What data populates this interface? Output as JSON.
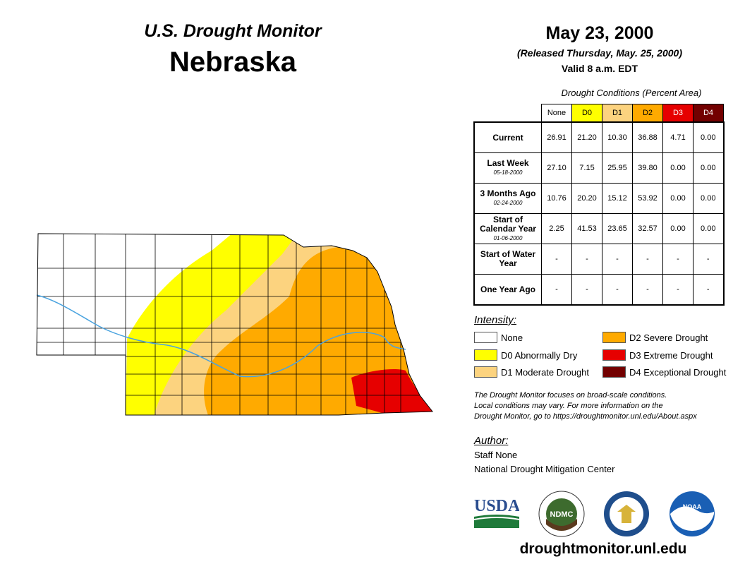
{
  "header": {
    "subtitle": "U.S. Drought Monitor",
    "state": "Nebraska",
    "date": "May 23, 2000",
    "released": "(Released Thursday, May. 25, 2000)",
    "valid": "Valid 8 a.m. EDT"
  },
  "conditions_table": {
    "title": "Drought Conditions (Percent Area)",
    "columns": [
      {
        "label": "None",
        "color": "#ffffff",
        "text_color": "#000000"
      },
      {
        "label": "D0",
        "color": "#ffff00",
        "text_color": "#000000"
      },
      {
        "label": "D1",
        "color": "#fcd37f",
        "text_color": "#000000"
      },
      {
        "label": "D2",
        "color": "#ffaa00",
        "text_color": "#000000"
      },
      {
        "label": "D3",
        "color": "#e60000",
        "text_color": "#ffffff"
      },
      {
        "label": "D4",
        "color": "#730000",
        "text_color": "#ffffff"
      }
    ],
    "rows": [
      {
        "label": "Current",
        "date": "",
        "values": [
          "26.91",
          "21.20",
          "10.30",
          "36.88",
          "4.71",
          "0.00"
        ]
      },
      {
        "label": "Last Week",
        "date": "05-18-2000",
        "values": [
          "27.10",
          "7.15",
          "25.95",
          "39.80",
          "0.00",
          "0.00"
        ]
      },
      {
        "label": "3 Months Ago",
        "date": "02-24-2000",
        "values": [
          "10.76",
          "20.20",
          "15.12",
          "53.92",
          "0.00",
          "0.00"
        ]
      },
      {
        "label": "Start of Calendar Year",
        "date": "01-06-2000",
        "values": [
          "2.25",
          "41.53",
          "23.65",
          "32.57",
          "0.00",
          "0.00"
        ]
      },
      {
        "label": "Start of Water Year",
        "date": "",
        "values": [
          "-",
          "-",
          "-",
          "-",
          "-",
          "-"
        ]
      },
      {
        "label": "One Year Ago",
        "date": "",
        "values": [
          "-",
          "-",
          "-",
          "-",
          "-",
          "-"
        ]
      }
    ]
  },
  "legend": {
    "title": "Intensity:",
    "items": [
      {
        "label": "None",
        "color": "#ffffff"
      },
      {
        "label": "D0 Abnormally Dry",
        "color": "#ffff00"
      },
      {
        "label": "D1 Moderate Drought",
        "color": "#fcd37f"
      },
      {
        "label": "D2 Severe Drought",
        "color": "#ffaa00"
      },
      {
        "label": "D3 Extreme Drought",
        "color": "#e60000"
      },
      {
        "label": "D4 Exceptional Drought",
        "color": "#730000"
      }
    ]
  },
  "note": {
    "line1": "The Drought Monitor focuses on broad-scale conditions.",
    "line2": "Local conditions may vary. For more information on the",
    "line3": "Drought Monitor, go to https://droughtmonitor.unl.edu/About.aspx"
  },
  "author": {
    "heading": "Author:",
    "name": "Staff None",
    "org": "National Drought Mitigation Center"
  },
  "logos": {
    "usda": "USDA",
    "ndmc": "NDMC",
    "noaa": "NOAA"
  },
  "footer": {
    "site": "droughtmonitor.unl.edu"
  },
  "map": {
    "river_color": "#4aa3df",
    "county_line_color": "#000000"
  }
}
